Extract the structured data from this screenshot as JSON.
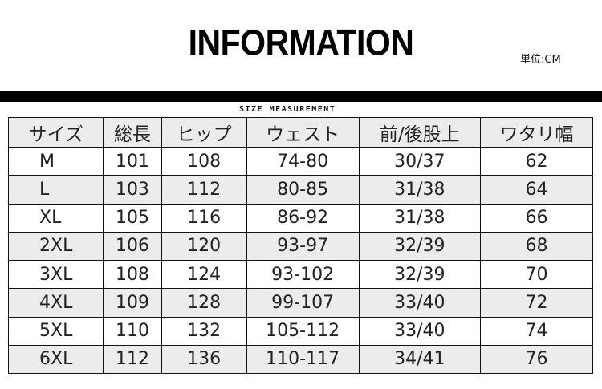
{
  "header": {
    "title": "INFORMATION",
    "unit": "単位:CM",
    "subtitle": "SIZE MEASUREMENT"
  },
  "table": {
    "columns": [
      "サイズ",
      "総長",
      "ヒップ",
      "ウェスト",
      "前/後股上",
      "ワタリ幅"
    ],
    "rows": [
      [
        "M",
        "101",
        "108",
        "74-80",
        "30/37",
        "62"
      ],
      [
        "L",
        "103",
        "112",
        "80-85",
        "31/38",
        "64"
      ],
      [
        "XL",
        "105",
        "116",
        "86-92",
        "31/38",
        "66"
      ],
      [
        "2XL",
        "106",
        "120",
        "93-97",
        "32/39",
        "68"
      ],
      [
        "3XL",
        "108",
        "124",
        "93-102",
        "32/39",
        "70"
      ],
      [
        "4XL",
        "109",
        "128",
        "99-107",
        "33/40",
        "72"
      ],
      [
        "5XL",
        "110",
        "132",
        "105-112",
        "33/40",
        "74"
      ],
      [
        "6XL",
        "112",
        "136",
        "110-117",
        "34/41",
        "76"
      ]
    ]
  },
  "colors": {
    "header_bg": "#ececec",
    "stripe_bg": "#ececec",
    "border": "#111111"
  }
}
